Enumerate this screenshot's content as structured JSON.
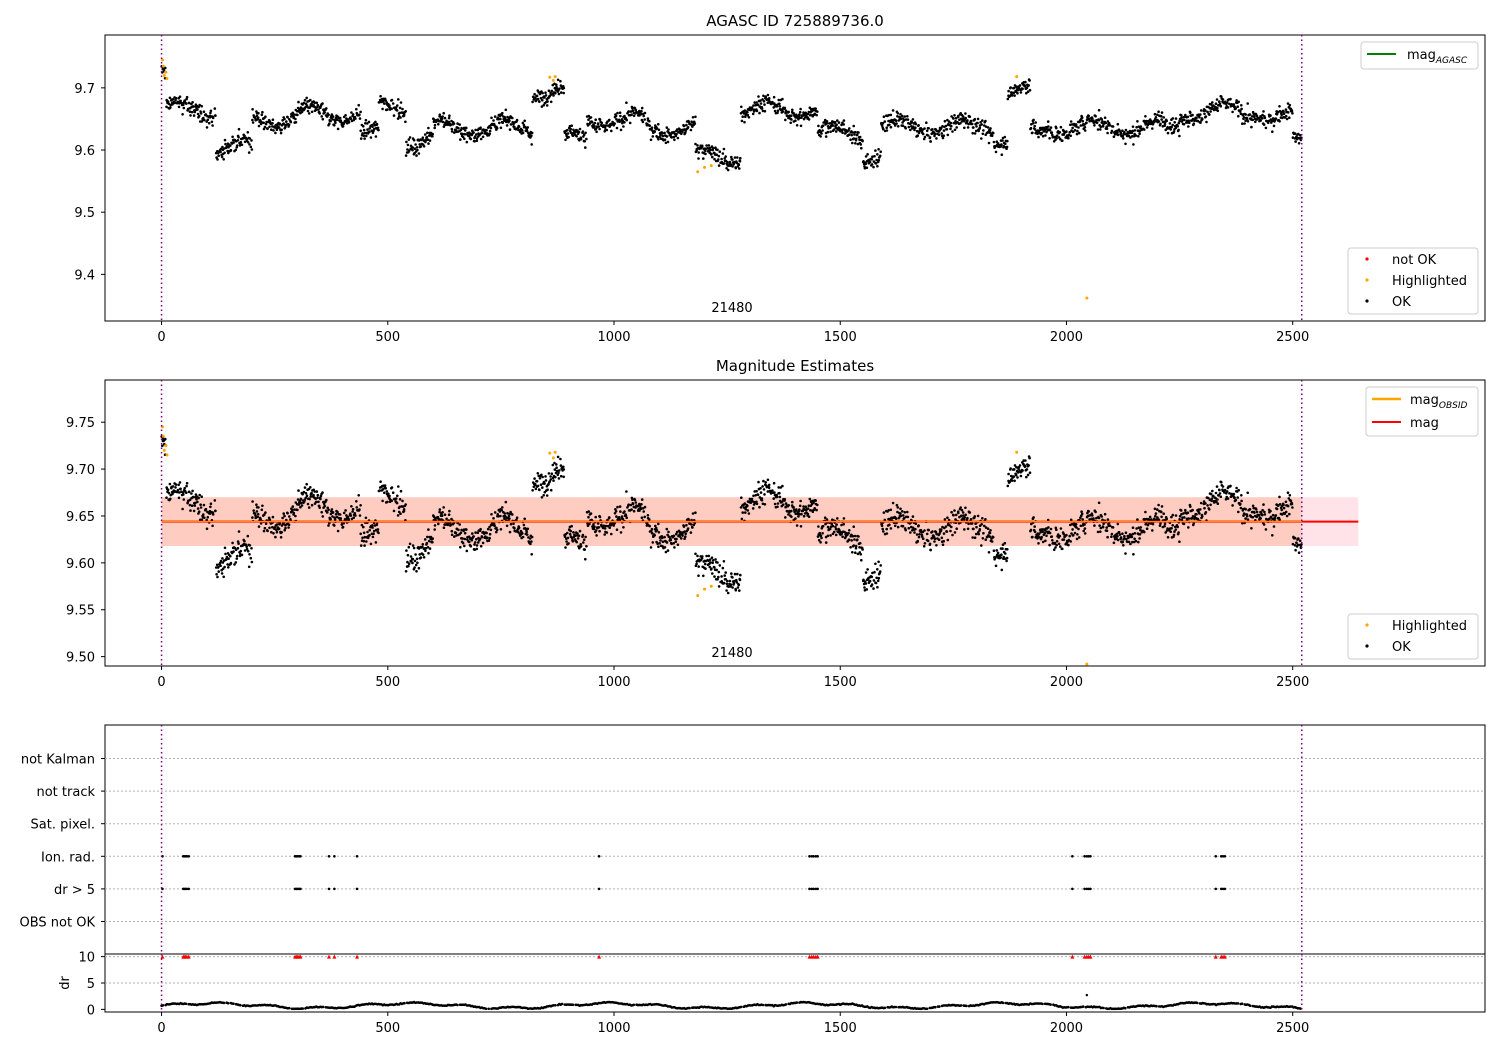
{
  "chart_data": [
    {
      "id": "agasc",
      "type": "scatter",
      "title": "AGASC ID 725889736.0",
      "xlim": [
        -125,
        2925
      ],
      "ylim": [
        9.325,
        9.785
      ],
      "xticks": [
        "0",
        "500",
        "1000",
        "1500",
        "2000",
        "2500"
      ],
      "yticks": [
        "9.4",
        "9.5",
        "9.6",
        "9.7"
      ],
      "vlines": [
        0,
        2520
      ],
      "obsid_label": "21480",
      "obsid_x": 1260,
      "legend_top": {
        "entries": [
          {
            "label": "mag",
            "sub": "AGASC",
            "color": "#008000"
          }
        ]
      },
      "legend_bottom": {
        "entries": [
          {
            "label": "not OK",
            "color": "#ff0000"
          },
          {
            "label": "Highlighted",
            "color": "#ffa500"
          },
          {
            "label": "OK",
            "color": "#000000"
          }
        ]
      },
      "series": [
        {
          "name": "OK",
          "color": "#000000",
          "note": "dense time series, ~2500 points, mag 9.58–9.70"
        },
        {
          "name": "Highlighted",
          "color": "#ffa500",
          "points": [
            [
              2,
              9.745
            ],
            [
              4,
              9.735
            ],
            [
              6,
              9.72
            ],
            [
              9,
              9.725
            ],
            [
              12,
              9.715
            ],
            [
              858,
              9.717
            ],
            [
              866,
              9.712
            ],
            [
              870,
              9.718
            ],
            [
              1185,
              9.565
            ],
            [
              1200,
              9.572
            ],
            [
              1215,
              9.575
            ],
            [
              1890,
              9.718
            ],
            [
              2045,
              9.362
            ]
          ]
        }
      ]
    },
    {
      "id": "estimates",
      "type": "scatter",
      "title": "Magnitude Estimates",
      "xlim": [
        -125,
        2925
      ],
      "ylim": [
        9.49,
        9.795
      ],
      "xticks": [
        "0",
        "500",
        "1000",
        "1500",
        "2000",
        "2500"
      ],
      "yticks": [
        "9.50",
        "9.55",
        "9.60",
        "9.65",
        "9.70",
        "9.75"
      ],
      "vlines": [
        0,
        2520
      ],
      "obsid_label": "21480",
      "obsid_x": 1260,
      "mag_line": 9.644,
      "mag_band": [
        9.618,
        9.67
      ],
      "band_x": [
        0,
        2645
      ],
      "legend_top": {
        "entries": [
          {
            "label": "mag",
            "sub": "OBSID",
            "color": "#ffa500"
          },
          {
            "label": "mag",
            "sub": "",
            "color": "#ff0000"
          }
        ]
      },
      "legend_bottom": {
        "entries": [
          {
            "label": "Highlighted",
            "color": "#ffa500"
          },
          {
            "label": "OK",
            "color": "#000000"
          }
        ]
      }
    },
    {
      "id": "flags",
      "type": "scatter",
      "xlim": [
        -125,
        2925
      ],
      "categories": [
        "not Kalman",
        "not track",
        "Sat. pixel.",
        "Ion. rad.",
        "dr > 5",
        "OBS not OK"
      ],
      "flag_points": {
        "Ion. rad.": [
          2,
          48,
          50,
          53,
          56,
          60,
          295,
          298,
          301,
          304,
          307,
          370,
          382,
          432,
          967,
          1432,
          1437,
          1441,
          1446,
          1450,
          2013,
          2040,
          2045,
          2049,
          2053,
          2330,
          2342,
          2346,
          2350
        ],
        "dr > 5": [
          2,
          48,
          50,
          53,
          56,
          60,
          295,
          298,
          301,
          304,
          307,
          370,
          382,
          432,
          967,
          1432,
          1437,
          1441,
          1446,
          1450,
          2013,
          2040,
          2045,
          2049,
          2053,
          2330,
          2342,
          2346,
          2350
        ]
      },
      "vlines": [
        0,
        2520
      ]
    },
    {
      "id": "dr",
      "type": "scatter",
      "ylabel": "dr",
      "xlim": [
        -125,
        2925
      ],
      "ylim": [
        -0.5,
        10.5
      ],
      "xticks": [
        "0",
        "500",
        "1000",
        "1500",
        "2000",
        "2500"
      ],
      "yticks": [
        "0",
        "5",
        "10"
      ],
      "high_points_y": 10,
      "outlier": [
        2045,
        2.7
      ],
      "vlines": [
        0,
        2520
      ]
    }
  ]
}
